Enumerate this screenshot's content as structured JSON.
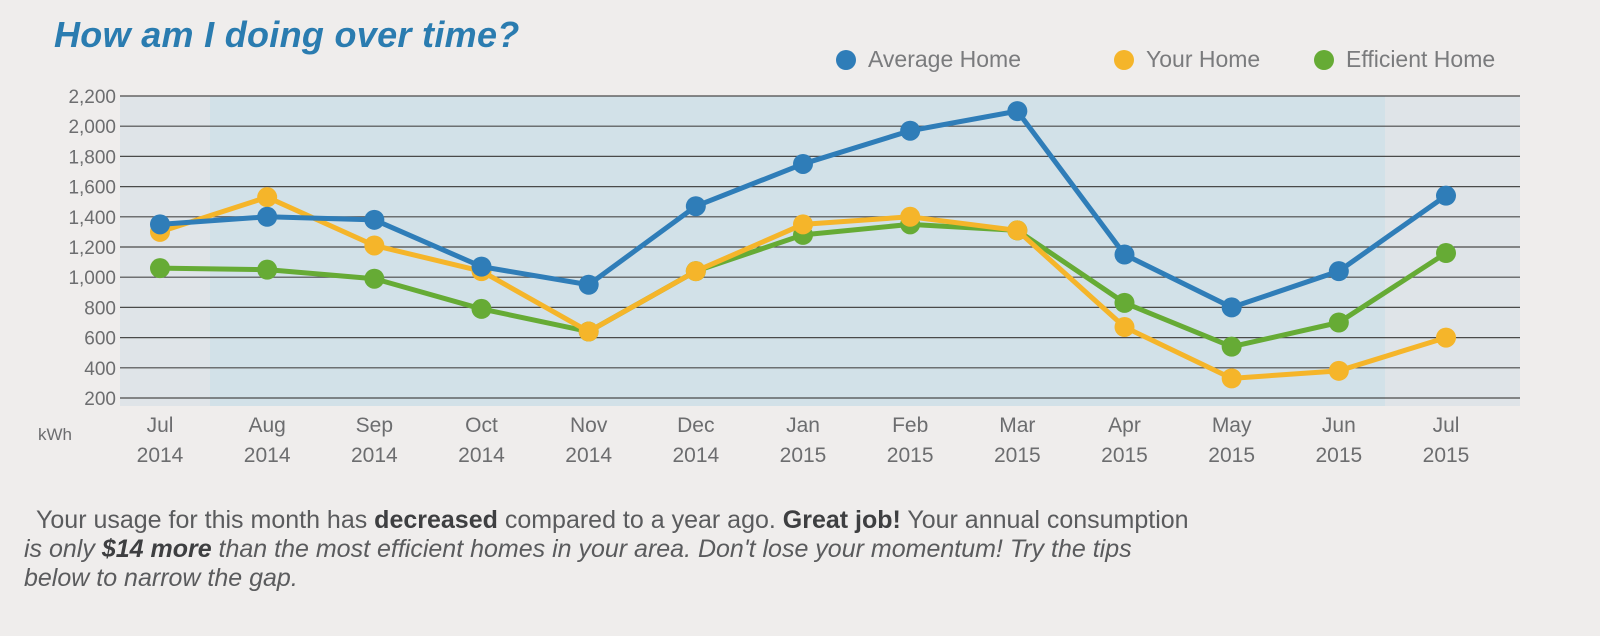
{
  "title": "How am I doing over time?",
  "colors": {
    "average": "#2f7db8",
    "your": "#f5b52a",
    "efficient": "#66ab35",
    "plot_bg": "#dfe4e8",
    "highlight_bg": "#d2e1e8",
    "grid": "#4a4a4a",
    "text": "#6c6d6f"
  },
  "legend": [
    {
      "label": "Average Home",
      "key": "average"
    },
    {
      "label": "Your Home",
      "key": "your"
    },
    {
      "label": "Efficient Home",
      "key": "efficient"
    }
  ],
  "chart_data": {
    "type": "line",
    "ylabel": "kWh",
    "ylim": [
      200,
      2200
    ],
    "yticks": [
      "2,200",
      "2,000",
      "1,800",
      "1,600",
      "1,400",
      "1,200",
      "1,000",
      "800",
      "600",
      "400",
      "200"
    ],
    "ytick_values": [
      2200,
      2000,
      1800,
      1600,
      1400,
      1200,
      1000,
      800,
      600,
      400,
      200
    ],
    "categories": [
      {
        "month": "Jul",
        "year": "2014"
      },
      {
        "month": "Aug",
        "year": "2014"
      },
      {
        "month": "Sep",
        "year": "2014"
      },
      {
        "month": "Oct",
        "year": "2014"
      },
      {
        "month": "Nov",
        "year": "2014"
      },
      {
        "month": "Dec",
        "year": "2014"
      },
      {
        "month": "Jan",
        "year": "2015"
      },
      {
        "month": "Feb",
        "year": "2015"
      },
      {
        "month": "Mar",
        "year": "2015"
      },
      {
        "month": "Apr",
        "year": "2015"
      },
      {
        "month": "May",
        "year": "2015"
      },
      {
        "month": "Jun",
        "year": "2015"
      },
      {
        "month": "Jul",
        "year": "2015"
      }
    ],
    "series": [
      {
        "name": "Average Home",
        "key": "average",
        "values": [
          1350,
          1400,
          1380,
          1070,
          950,
          1470,
          1750,
          1970,
          2100,
          1150,
          800,
          1040,
          1540
        ]
      },
      {
        "name": "Your Home",
        "key": "your",
        "values": [
          1300,
          1530,
          1210,
          1040,
          640,
          1040,
          1350,
          1400,
          1310,
          670,
          330,
          380,
          600
        ]
      },
      {
        "name": "Efficient Home",
        "key": "efficient",
        "values": [
          1060,
          1050,
          990,
          790,
          640,
          1040,
          1280,
          1350,
          1310,
          830,
          540,
          700,
          1160
        ]
      }
    ],
    "grid": true,
    "legend_position": "top-right"
  },
  "summary": {
    "l1_a": "Your usage for this month has ",
    "l1_b": "decreased",
    "l1_c": " compared to a year ago. ",
    "l1_d": "Great job!",
    "l1_e": " Your annual consumption",
    "l2_a": "is only ",
    "l2_b": "$14 more",
    "l2_c": " than the most efficient homes in your area. Don't lose your momentum! Try the tips",
    "l3": "below to narrow the gap."
  }
}
